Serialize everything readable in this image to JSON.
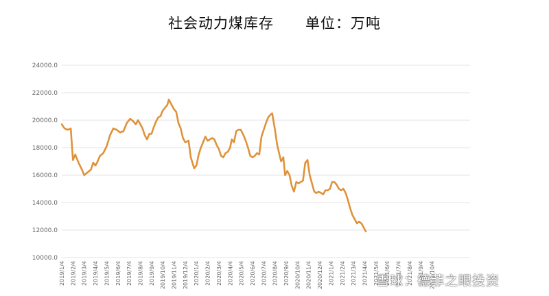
{
  "title": "社会动力煤库存",
  "unit_label": "单位：万吨",
  "watermark": "雪球：德菲之眼投资",
  "colors": {
    "line": "#e0923a",
    "grid": "#e3e3e3",
    "tick": "#666666"
  },
  "chart_data": {
    "type": "line",
    "title": "社会动力煤库存",
    "unit": "单位：万吨",
    "xlabel": "",
    "ylabel": "",
    "ylim": [
      10000,
      24000
    ],
    "yticks": [
      "24000.0",
      "22000.0",
      "20000.0",
      "18000.0",
      "16000.0",
      "14000.0",
      "12000.0",
      "10000.0"
    ],
    "ytick_values": [
      24000,
      22000,
      20000,
      18000,
      16000,
      14000,
      12000,
      10000
    ],
    "xticks": [
      "2019/1/4",
      "2019/2/4",
      "2019/3/4",
      "2019/4/4",
      "2019/5/4",
      "2019/6/4",
      "2019/7/4",
      "2019/8/4",
      "2019/9/4",
      "2019/10/4",
      "2019/11/4",
      "2019/12/4",
      "2020/1/4",
      "2020/2/4",
      "2020/3/4",
      "2020/4/4",
      "2020/5/4",
      "2020/6/4",
      "2020/7/4",
      "2020/8/4",
      "2020/9/4",
      "2020/10/4",
      "2020/11/4",
      "2020/12/4",
      "2021/1/4",
      "2021/2/4",
      "2021/3/4",
      "2021/4/4",
      "2021/5/4",
      "2021/6/4",
      "2021/7/4",
      "2021/8/4",
      "2021/9/4",
      "2021/10/4"
    ],
    "grid": true,
    "legend": "none",
    "series": [
      {
        "values": [
          [
            0.0,
            19700
          ],
          [
            0.25,
            19400
          ],
          [
            0.55,
            19300
          ],
          [
            0.8,
            19400
          ],
          [
            1.0,
            17100
          ],
          [
            1.2,
            17500
          ],
          [
            1.5,
            16900
          ],
          [
            1.8,
            16400
          ],
          [
            2.0,
            16000
          ],
          [
            2.3,
            16200
          ],
          [
            2.6,
            16400
          ],
          [
            2.8,
            16900
          ],
          [
            3.0,
            16700
          ],
          [
            3.2,
            17000
          ],
          [
            3.4,
            17400
          ],
          [
            3.7,
            17600
          ],
          [
            4.0,
            18100
          ],
          [
            4.3,
            18900
          ],
          [
            4.6,
            19400
          ],
          [
            4.9,
            19300
          ],
          [
            5.2,
            19100
          ],
          [
            5.5,
            19200
          ],
          [
            5.8,
            19800
          ],
          [
            6.1,
            20100
          ],
          [
            6.4,
            19900
          ],
          [
            6.6,
            19700
          ],
          [
            6.8,
            20000
          ],
          [
            7.0,
            19700
          ],
          [
            7.2,
            19400
          ],
          [
            7.4,
            18900
          ],
          [
            7.6,
            18600
          ],
          [
            7.8,
            19000
          ],
          [
            8.0,
            19000
          ],
          [
            8.2,
            19500
          ],
          [
            8.4,
            19900
          ],
          [
            8.6,
            20200
          ],
          [
            8.8,
            20300
          ],
          [
            9.0,
            20700
          ],
          [
            9.2,
            20900
          ],
          [
            9.4,
            21100
          ],
          [
            9.55,
            21500
          ],
          [
            9.8,
            21100
          ],
          [
            10.0,
            20800
          ],
          [
            10.2,
            20600
          ],
          [
            10.4,
            19800
          ],
          [
            10.6,
            19400
          ],
          [
            10.8,
            18700
          ],
          [
            11.0,
            18400
          ],
          [
            11.3,
            18500
          ],
          [
            11.5,
            17300
          ],
          [
            11.8,
            16500
          ],
          [
            12.0,
            16700
          ],
          [
            12.2,
            17500
          ],
          [
            12.4,
            18000
          ],
          [
            12.6,
            18400
          ],
          [
            12.8,
            18800
          ],
          [
            13.0,
            18500
          ],
          [
            13.2,
            18600
          ],
          [
            13.4,
            18700
          ],
          [
            13.6,
            18600
          ],
          [
            13.8,
            18200
          ],
          [
            14.0,
            17900
          ],
          [
            14.2,
            17400
          ],
          [
            14.4,
            17300
          ],
          [
            14.6,
            17600
          ],
          [
            14.8,
            17700
          ],
          [
            15.0,
            18000
          ],
          [
            15.15,
            18600
          ],
          [
            15.35,
            18400
          ],
          [
            15.55,
            19200
          ],
          [
            15.75,
            19300
          ],
          [
            15.95,
            19300
          ],
          [
            16.2,
            18900
          ],
          [
            16.4,
            18500
          ],
          [
            16.6,
            18000
          ],
          [
            16.8,
            17400
          ],
          [
            17.0,
            17300
          ],
          [
            17.2,
            17400
          ],
          [
            17.4,
            17600
          ],
          [
            17.6,
            17500
          ],
          [
            17.8,
            18800
          ],
          [
            18.0,
            19300
          ],
          [
            18.2,
            19800
          ],
          [
            18.4,
            20200
          ],
          [
            18.6,
            20400
          ],
          [
            18.75,
            20500
          ],
          [
            19.0,
            19300
          ],
          [
            19.2,
            18200
          ],
          [
            19.4,
            17500
          ],
          [
            19.55,
            17000
          ],
          [
            19.75,
            17300
          ],
          [
            19.9,
            16000
          ],
          [
            20.1,
            16300
          ],
          [
            20.3,
            16000
          ],
          [
            20.5,
            15200
          ],
          [
            20.7,
            14800
          ],
          [
            20.9,
            15500
          ],
          [
            21.1,
            15400
          ],
          [
            21.3,
            15500
          ],
          [
            21.5,
            15600
          ],
          [
            21.7,
            16900
          ],
          [
            21.9,
            17100
          ],
          [
            22.1,
            16000
          ],
          [
            22.3,
            15400
          ],
          [
            22.5,
            14800
          ],
          [
            22.7,
            14700
          ],
          [
            22.9,
            14800
          ],
          [
            23.1,
            14700
          ],
          [
            23.3,
            14600
          ],
          [
            23.5,
            14900
          ],
          [
            23.7,
            14900
          ],
          [
            23.9,
            15000
          ],
          [
            24.1,
            15500
          ],
          [
            24.3,
            15500
          ],
          [
            24.5,
            15300
          ],
          [
            24.7,
            15000
          ],
          [
            24.9,
            14900
          ],
          [
            25.1,
            15000
          ],
          [
            25.3,
            14700
          ],
          [
            25.5,
            14200
          ],
          [
            25.7,
            13600
          ],
          [
            25.9,
            13100
          ],
          [
            26.1,
            12800
          ],
          [
            26.3,
            12500
          ],
          [
            26.5,
            12600
          ],
          [
            26.7,
            12500
          ],
          [
            26.9,
            12200
          ],
          [
            27.1,
            11900
          ]
        ]
      }
    ]
  }
}
